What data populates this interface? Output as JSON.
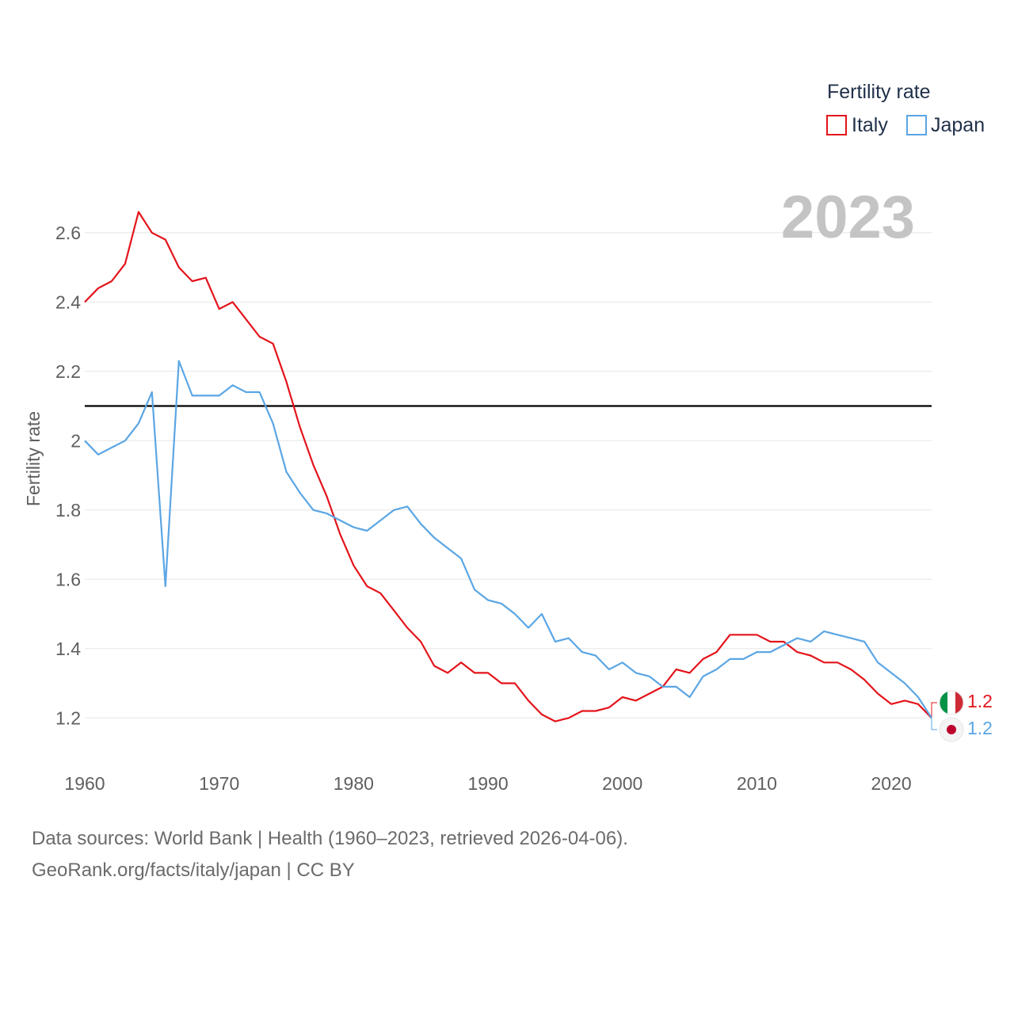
{
  "chart_data": {
    "type": "line",
    "title": "",
    "xlabel": "",
    "ylabel": "Fertility rate",
    "xlim": [
      1960,
      2023
    ],
    "ylim": [
      1.1,
      2.7
    ],
    "x_ticks": [
      1960,
      1970,
      1980,
      1990,
      2000,
      2010,
      2020
    ],
    "y_ticks": [
      1.2,
      1.4,
      1.6,
      1.8,
      2.0,
      2.2,
      2.4,
      2.6
    ],
    "y_tick_labels": [
      "1.2",
      "1.4",
      "1.6",
      "1.8",
      "2",
      "2.2",
      "2.4",
      "2.6"
    ],
    "reference_line": 2.1,
    "year_label": "2023",
    "legend": {
      "title": "Fertility rate",
      "placement": "top-right"
    },
    "x": [
      1960,
      1961,
      1962,
      1963,
      1964,
      1965,
      1966,
      1967,
      1968,
      1969,
      1970,
      1971,
      1972,
      1973,
      1974,
      1975,
      1976,
      1977,
      1978,
      1979,
      1980,
      1981,
      1982,
      1983,
      1984,
      1985,
      1986,
      1987,
      1988,
      1989,
      1990,
      1991,
      1992,
      1993,
      1994,
      1995,
      1996,
      1997,
      1998,
      1999,
      2000,
      2001,
      2002,
      2003,
      2004,
      2005,
      2006,
      2007,
      2008,
      2009,
      2010,
      2011,
      2012,
      2013,
      2014,
      2015,
      2016,
      2017,
      2018,
      2019,
      2020,
      2021,
      2022,
      2023
    ],
    "series": [
      {
        "name": "Italy",
        "color": "#e3141b",
        "end_label": "1.2",
        "values": [
          2.4,
          2.44,
          2.46,
          2.51,
          2.66,
          2.6,
          2.58,
          2.5,
          2.46,
          2.47,
          2.38,
          2.4,
          2.35,
          2.3,
          2.28,
          2.17,
          2.04,
          1.93,
          1.84,
          1.73,
          1.64,
          1.58,
          1.56,
          1.51,
          1.46,
          1.42,
          1.35,
          1.33,
          1.36,
          1.33,
          1.33,
          1.3,
          1.3,
          1.25,
          1.21,
          1.19,
          1.2,
          1.22,
          1.22,
          1.23,
          1.26,
          1.25,
          1.27,
          1.29,
          1.34,
          1.33,
          1.37,
          1.39,
          1.44,
          1.44,
          1.44,
          1.42,
          1.42,
          1.39,
          1.38,
          1.36,
          1.36,
          1.34,
          1.31,
          1.27,
          1.24,
          1.25,
          1.24,
          1.2
        ]
      },
      {
        "name": "Japan",
        "color": "#5ba6e4",
        "end_label": "1.2",
        "values": [
          2.0,
          1.96,
          1.98,
          2.0,
          2.05,
          2.14,
          1.58,
          2.23,
          2.13,
          2.13,
          2.13,
          2.16,
          2.14,
          2.14,
          2.05,
          1.91,
          1.85,
          1.8,
          1.79,
          1.77,
          1.75,
          1.74,
          1.77,
          1.8,
          1.81,
          1.76,
          1.72,
          1.69,
          1.66,
          1.57,
          1.54,
          1.53,
          1.5,
          1.46,
          1.5,
          1.42,
          1.43,
          1.39,
          1.38,
          1.34,
          1.36,
          1.33,
          1.32,
          1.29,
          1.29,
          1.26,
          1.32,
          1.34,
          1.37,
          1.37,
          1.39,
          1.39,
          1.41,
          1.43,
          1.42,
          1.45,
          1.44,
          1.43,
          1.42,
          1.36,
          1.33,
          1.3,
          1.26,
          1.2
        ]
      }
    ]
  },
  "footer": {
    "sources": "Data sources: World Bank | Health (1960–2023, retrieved 2026-04-06).",
    "credit": "GeoRank.org/facts/italy/japan | CC BY"
  }
}
